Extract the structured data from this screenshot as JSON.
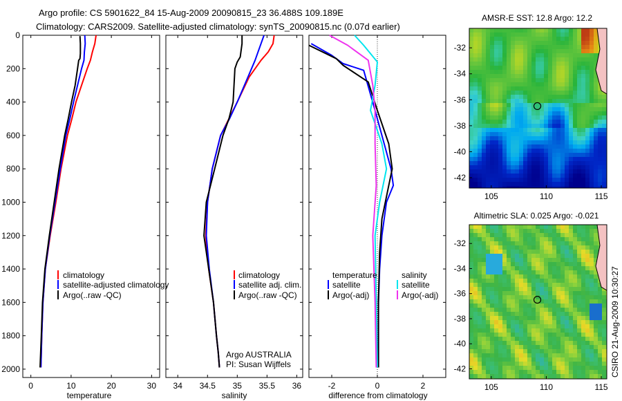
{
  "header": {
    "line1": "Argo profile: CS 5901622_84 15-Aug-2009 20090815_23 36.488S 109.189E",
    "line2": "Climatology: CARS2009. Satellite-adjusted climatology: synTS_20090815.nc (0.07d earlier)"
  },
  "footer": {
    "agency": "Argo AUSTRALIA",
    "pi": "PI: Susan Wijffels",
    "stamp": "CSIRO 21-Aug-2009 10:30:27"
  },
  "colors": {
    "climatology": "#ff0000",
    "satellite": "#0000ff",
    "argo": "#000000",
    "sal_satellite": "#00e5ee",
    "sal_argo": "#ee33ee"
  },
  "chart_data": [
    {
      "type": "line",
      "xlabel": "temperature",
      "xlim": [
        -2,
        32
      ],
      "xticks": [
        0,
        10,
        20,
        30
      ],
      "ylim": [
        2050,
        0
      ],
      "yticks": [
        0,
        200,
        400,
        600,
        800,
        1000,
        1200,
        1400,
        1600,
        1800,
        2000
      ],
      "legend": [
        "climatology",
        "satellite-adjusted climatology",
        "Argo(..raw -QC)"
      ],
      "series": [
        {
          "name": "climatology",
          "color": "#ff0000",
          "x": [
            16.2,
            15.9,
            15.3,
            14.8,
            14.0,
            12.6,
            11.2,
            10.2,
            9.1,
            7.5,
            6.2,
            4.8,
            3.6,
            3.0,
            2.7,
            2.5
          ],
          "y": [
            0,
            50,
            100,
            150,
            200,
            300,
            400,
            500,
            600,
            800,
            1000,
            1200,
            1400,
            1600,
            1800,
            1990
          ]
        },
        {
          "name": "satellite-adjusted climatology",
          "color": "#0000ff",
          "x": [
            13.4,
            13.5,
            13.3,
            13.2,
            12.6,
            11.6,
            10.6,
            9.7,
            8.7,
            7.3,
            6.0,
            4.7,
            3.6,
            3.0,
            2.7,
            2.5
          ],
          "y": [
            0,
            50,
            100,
            150,
            200,
            300,
            400,
            500,
            600,
            800,
            1000,
            1200,
            1400,
            1600,
            1800,
            1990
          ]
        },
        {
          "name": "Argo(..raw -QC)",
          "color": "#000000",
          "x": [
            12.2,
            12.3,
            12.3,
            12.2,
            11.9,
            11.6,
            11.0,
            10.1,
            9.3,
            8.4,
            7.0,
            5.8,
            4.6,
            3.5,
            2.9,
            2.6,
            2.3
          ],
          "y": [
            5,
            50,
            110,
            140,
            150,
            200,
            300,
            400,
            500,
            600,
            800,
            1000,
            1200,
            1400,
            1600,
            1800,
            1990
          ]
        }
      ]
    },
    {
      "type": "line",
      "xlabel": "salinity",
      "xlim": [
        33.8,
        36.1
      ],
      "xticks": [
        34,
        34.5,
        35,
        35.5,
        36
      ],
      "xticklabels": [
        "34",
        "34.5",
        "35",
        "35.5",
        "36"
      ],
      "ylim": [
        2050,
        0
      ],
      "legend": [
        "climatology",
        "satellite adj. clim.",
        "Argo(..raw -QC)"
      ],
      "series": [
        {
          "name": "climatology",
          "color": "#ff0000",
          "x": [
            35.62,
            35.6,
            35.52,
            35.4,
            35.2,
            35.0,
            34.86,
            34.72,
            34.58,
            34.5,
            34.47,
            34.52,
            34.6,
            34.65,
            34.68,
            34.7
          ],
          "y": [
            0,
            50,
            100,
            150,
            250,
            400,
            500,
            600,
            800,
            1000,
            1200,
            1400,
            1600,
            1800,
            1900,
            1990
          ]
        },
        {
          "name": "satellite adj. clim.",
          "color": "#0000ff",
          "x": [
            35.45,
            35.4,
            35.35,
            35.3,
            35.18,
            35.0,
            34.87,
            34.72,
            34.58,
            34.5,
            34.48,
            34.53,
            34.6,
            34.65,
            34.68,
            34.7
          ],
          "y": [
            0,
            50,
            100,
            150,
            250,
            400,
            500,
            600,
            800,
            1000,
            1200,
            1400,
            1600,
            1800,
            1900,
            1990
          ]
        },
        {
          "name": "Argo(..raw -QC)",
          "color": "#000000",
          "x": [
            35.08,
            35.08,
            35.05,
            35.0,
            34.96,
            34.93,
            34.86,
            34.76,
            34.62,
            34.48,
            34.44,
            34.52,
            34.6,
            34.65,
            34.68,
            34.7
          ],
          "y": [
            0,
            50,
            130,
            160,
            200,
            400,
            500,
            600,
            800,
            1000,
            1200,
            1400,
            1600,
            1800,
            1900,
            1990
          ]
        }
      ]
    },
    {
      "type": "line",
      "xlabel": "difference from climatology",
      "xlim": [
        -3,
        3
      ],
      "xticks": [
        -2,
        0,
        2
      ],
      "ylim": [
        2050,
        0
      ],
      "legend_columns": [
        {
          "title": "temperature",
          "entries": [
            "satellite",
            "Argo(-adj)"
          ]
        },
        {
          "title": "salinity",
          "entries": [
            "satellite",
            "Argo(-adj)"
          ]
        }
      ],
      "series": [
        {
          "name": "temperature satellite",
          "color": "#0000ff",
          "x": [
            -2.9,
            -2.0,
            -1.5,
            -0.6,
            -0.1,
            0.3,
            0.6,
            0.7,
            0.4,
            0.2,
            0.1,
            0.05,
            0.05
          ],
          "y": [
            50,
            120,
            170,
            210,
            450,
            650,
            800,
            900,
            1000,
            1200,
            1400,
            1600,
            1990
          ]
        },
        {
          "name": "temperature Argo(-adj)",
          "color": "#000000",
          "x": [
            -3.0,
            -1.8,
            -1.5,
            -0.4,
            0.0,
            0.5,
            0.65,
            0.5,
            0.2,
            0.1,
            0.05,
            0.05
          ],
          "y": [
            60,
            140,
            180,
            280,
            450,
            650,
            800,
            900,
            1100,
            1300,
            1600,
            1990
          ]
        },
        {
          "name": "salinity satellite",
          "color": "#00e5ee",
          "x": [
            -1.0,
            -0.6,
            0.0,
            -0.1,
            -0.3,
            0.2,
            0.4,
            0.1,
            -0.1,
            -0.05,
            0.0
          ],
          "y": [
            0,
            60,
            160,
            300,
            450,
            650,
            800,
            1000,
            1200,
            1600,
            1990
          ]
        },
        {
          "name": "salinity Argo(-adj)",
          "color": "#ee33ee",
          "x": [
            -2.1,
            -1.3,
            -0.4,
            -0.2,
            -0.1,
            -0.1,
            -0.05,
            -0.2,
            -0.1,
            -0.05
          ],
          "y": [
            0,
            60,
            150,
            300,
            450,
            650,
            900,
            1200,
            1600,
            1990
          ]
        }
      ]
    },
    {
      "type": "heatmap",
      "title": "AMSR-E SST: 12.8 Argo: 12.2",
      "xlim": [
        103,
        115.5
      ],
      "ylim": [
        -42.8,
        -30.5
      ],
      "xticks": [
        105,
        110,
        115
      ],
      "yticks": [
        -32,
        -34,
        -36,
        -38,
        -40,
        -42
      ],
      "marker": {
        "lon": 109.189,
        "lat": -36.488
      }
    },
    {
      "type": "heatmap",
      "title": "Altimetric SLA: 0.025 Argo: -0.021",
      "xlim": [
        103,
        115.5
      ],
      "ylim": [
        -42.8,
        -30.5
      ],
      "xticks": [
        105,
        110,
        115
      ],
      "yticks": [
        -32,
        -34,
        -36,
        -38,
        -40,
        -42
      ],
      "marker": {
        "lon": 109.189,
        "lat": -36.488
      }
    }
  ]
}
